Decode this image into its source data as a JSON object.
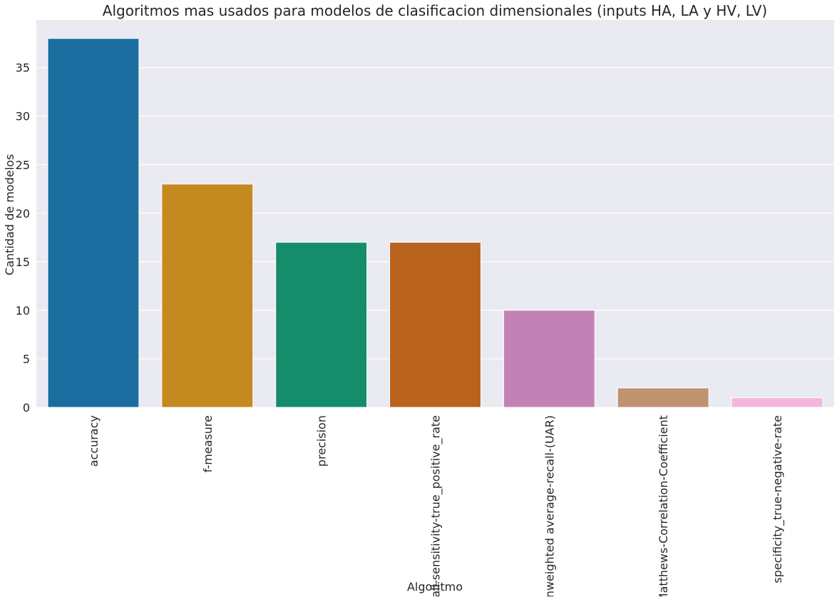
{
  "chart_data": {
    "type": "bar",
    "title": "Algoritmos mas usados para modelos de clasificacion dimensionales (inputs HA, LA y HV, LV)",
    "xlabel": "Algoritmo",
    "ylabel": "Cantidad de modelos",
    "categories": [
      "accuracy",
      "f-measure",
      "precision",
      "recall-sensitivity-true_positive_rate",
      "unweighted average-recall-(UAR)",
      "Matthews-Correlation-Coefficient",
      "specificity_true-negative-rate"
    ],
    "values": [
      38,
      23,
      17,
      17,
      10,
      2,
      1
    ],
    "colors": [
      "#1a6e9f",
      "#c4891f",
      "#158d6b",
      "#b9621e",
      "#c382b6",
      "#bf9270",
      "#f3b7df"
    ],
    "yticks": [
      "0",
      "5",
      "10",
      "15",
      "20",
      "25",
      "30",
      "35"
    ],
    "ylim": [
      0,
      39.9
    ],
    "grid": true,
    "background_color": "#eaeaf2",
    "grid_color": "#ffffff"
  }
}
